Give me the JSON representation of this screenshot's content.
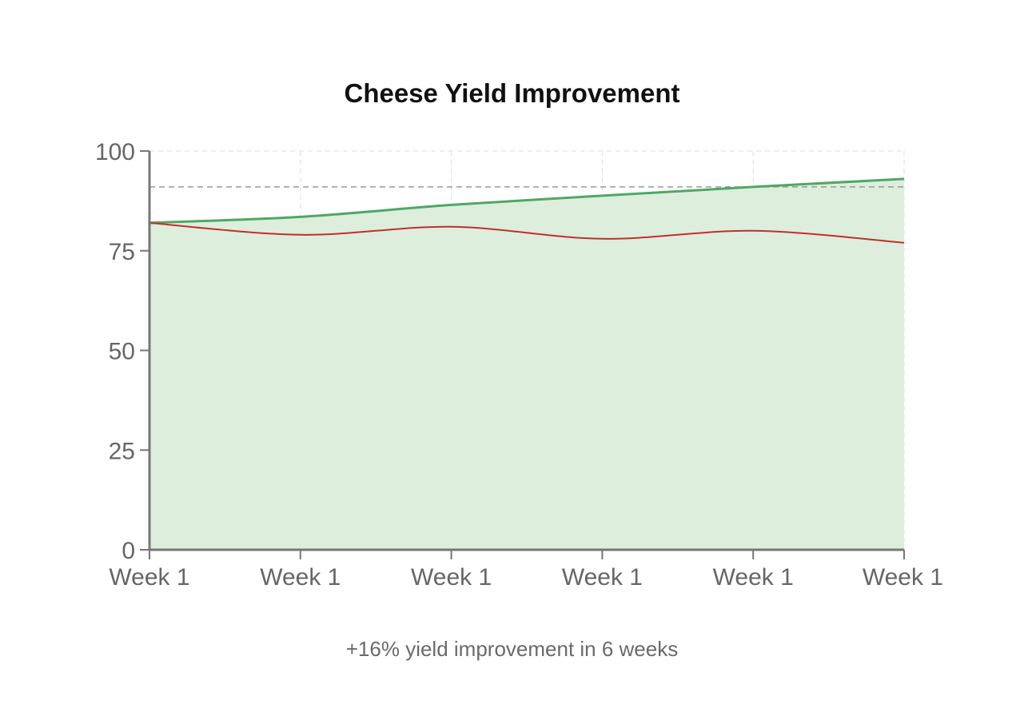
{
  "chart_data": {
    "type": "line",
    "title": "Cheese Yield Improvement",
    "caption": "+16% yield improvement in 6 weeks",
    "categories": [
      "Week 1",
      "Week 1",
      "Week 1",
      "Week 1",
      "Week 1",
      "Week 1"
    ],
    "y_ticks": [
      "0",
      "25",
      "50",
      "75",
      "100"
    ],
    "ylim": [
      0,
      100
    ],
    "target_line": 91,
    "series": [
      {
        "values": [
          82,
          83.5,
          86.5,
          88.8,
          91,
          93
        ],
        "color": "#4fa862",
        "fill": "#ddeedd"
      },
      {
        "values": [
          82,
          79,
          81,
          78,
          80,
          77
        ],
        "color": "#c0302c"
      }
    ],
    "grid": true,
    "colors": {
      "axis": "#777777",
      "grid": "#dddddd",
      "target": "#999999"
    }
  }
}
